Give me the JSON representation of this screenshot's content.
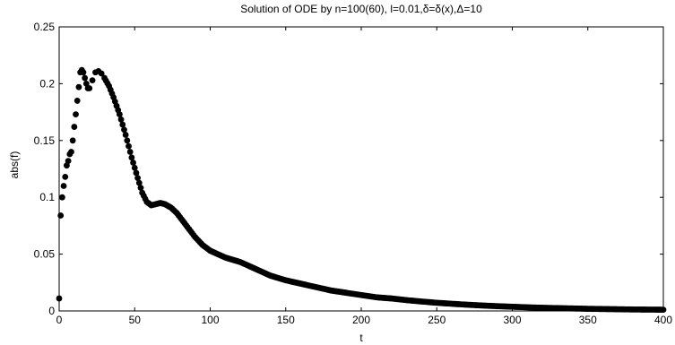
{
  "chart_data": {
    "type": "scatter",
    "title": "Solution of ODE by n=100(60), l=0.01,δ=δ(x),Δ=10",
    "xlabel": "t",
    "ylabel": "abs(f)",
    "xlim": [
      0,
      400
    ],
    "ylim": [
      0,
      0.25
    ],
    "xticks": [
      "0",
      "50",
      "100",
      "150",
      "200",
      "250",
      "300",
      "350",
      "400"
    ],
    "yticks": [
      "0",
      "0.05",
      "0.1",
      "0.15",
      "0.2",
      "0.25"
    ],
    "grid": false,
    "legend": "none",
    "marker_color": "#000000",
    "series": [
      {
        "points": [
          [
            0,
            0.011
          ],
          [
            1,
            0.084
          ],
          [
            2,
            0.1
          ],
          [
            3,
            0.11
          ],
          [
            4,
            0.118
          ],
          [
            5,
            0.128
          ],
          [
            6,
            0.132
          ],
          [
            7,
            0.138
          ],
          [
            8,
            0.14
          ],
          [
            9,
            0.15
          ],
          [
            10,
            0.162
          ],
          [
            11,
            0.173
          ],
          [
            12,
            0.185
          ],
          [
            13,
            0.197
          ],
          [
            14,
            0.21
          ],
          [
            15,
            0.212
          ],
          [
            16,
            0.21
          ],
          [
            17,
            0.205
          ],
          [
            18,
            0.2
          ],
          [
            19,
            0.196
          ],
          [
            20,
            0.196
          ],
          [
            22,
            0.203
          ],
          [
            24,
            0.21
          ],
          [
            26,
            0.211
          ],
          [
            28,
            0.209
          ],
          [
            30,
            0.205
          ],
          [
            33,
            0.198
          ],
          [
            36,
            0.188
          ],
          [
            40,
            0.173
          ],
          [
            44,
            0.155
          ],
          [
            48,
            0.135
          ],
          [
            52,
            0.117
          ],
          [
            55,
            0.104
          ],
          [
            58,
            0.096
          ],
          [
            61,
            0.093
          ],
          [
            64,
            0.094
          ],
          [
            67,
            0.095
          ],
          [
            70,
            0.094
          ],
          [
            74,
            0.091
          ],
          [
            78,
            0.086
          ],
          [
            82,
            0.079
          ],
          [
            86,
            0.072
          ],
          [
            90,
            0.065
          ],
          [
            95,
            0.058
          ],
          [
            100,
            0.053
          ],
          [
            105,
            0.05
          ],
          [
            110,
            0.047
          ],
          [
            115,
            0.045
          ],
          [
            120,
            0.043
          ],
          [
            125,
            0.04
          ],
          [
            130,
            0.037
          ],
          [
            135,
            0.034
          ],
          [
            140,
            0.031
          ],
          [
            145,
            0.029
          ],
          [
            150,
            0.027
          ],
          [
            160,
            0.024
          ],
          [
            170,
            0.021
          ],
          [
            180,
            0.018
          ],
          [
            190,
            0.016
          ],
          [
            200,
            0.014
          ],
          [
            210,
            0.012
          ],
          [
            220,
            0.011
          ],
          [
            230,
            0.0095
          ],
          [
            240,
            0.0083
          ],
          [
            250,
            0.0072
          ],
          [
            260,
            0.0063
          ],
          [
            270,
            0.0055
          ],
          [
            280,
            0.0048
          ],
          [
            290,
            0.0042
          ],
          [
            300,
            0.0037
          ],
          [
            310,
            0.0032
          ],
          [
            320,
            0.0028
          ],
          [
            330,
            0.0025
          ],
          [
            340,
            0.0022
          ],
          [
            350,
            0.0019
          ],
          [
            360,
            0.0017
          ],
          [
            370,
            0.0015
          ],
          [
            380,
            0.0013
          ],
          [
            390,
            0.0012
          ],
          [
            400,
            0.0011
          ]
        ]
      }
    ]
  }
}
